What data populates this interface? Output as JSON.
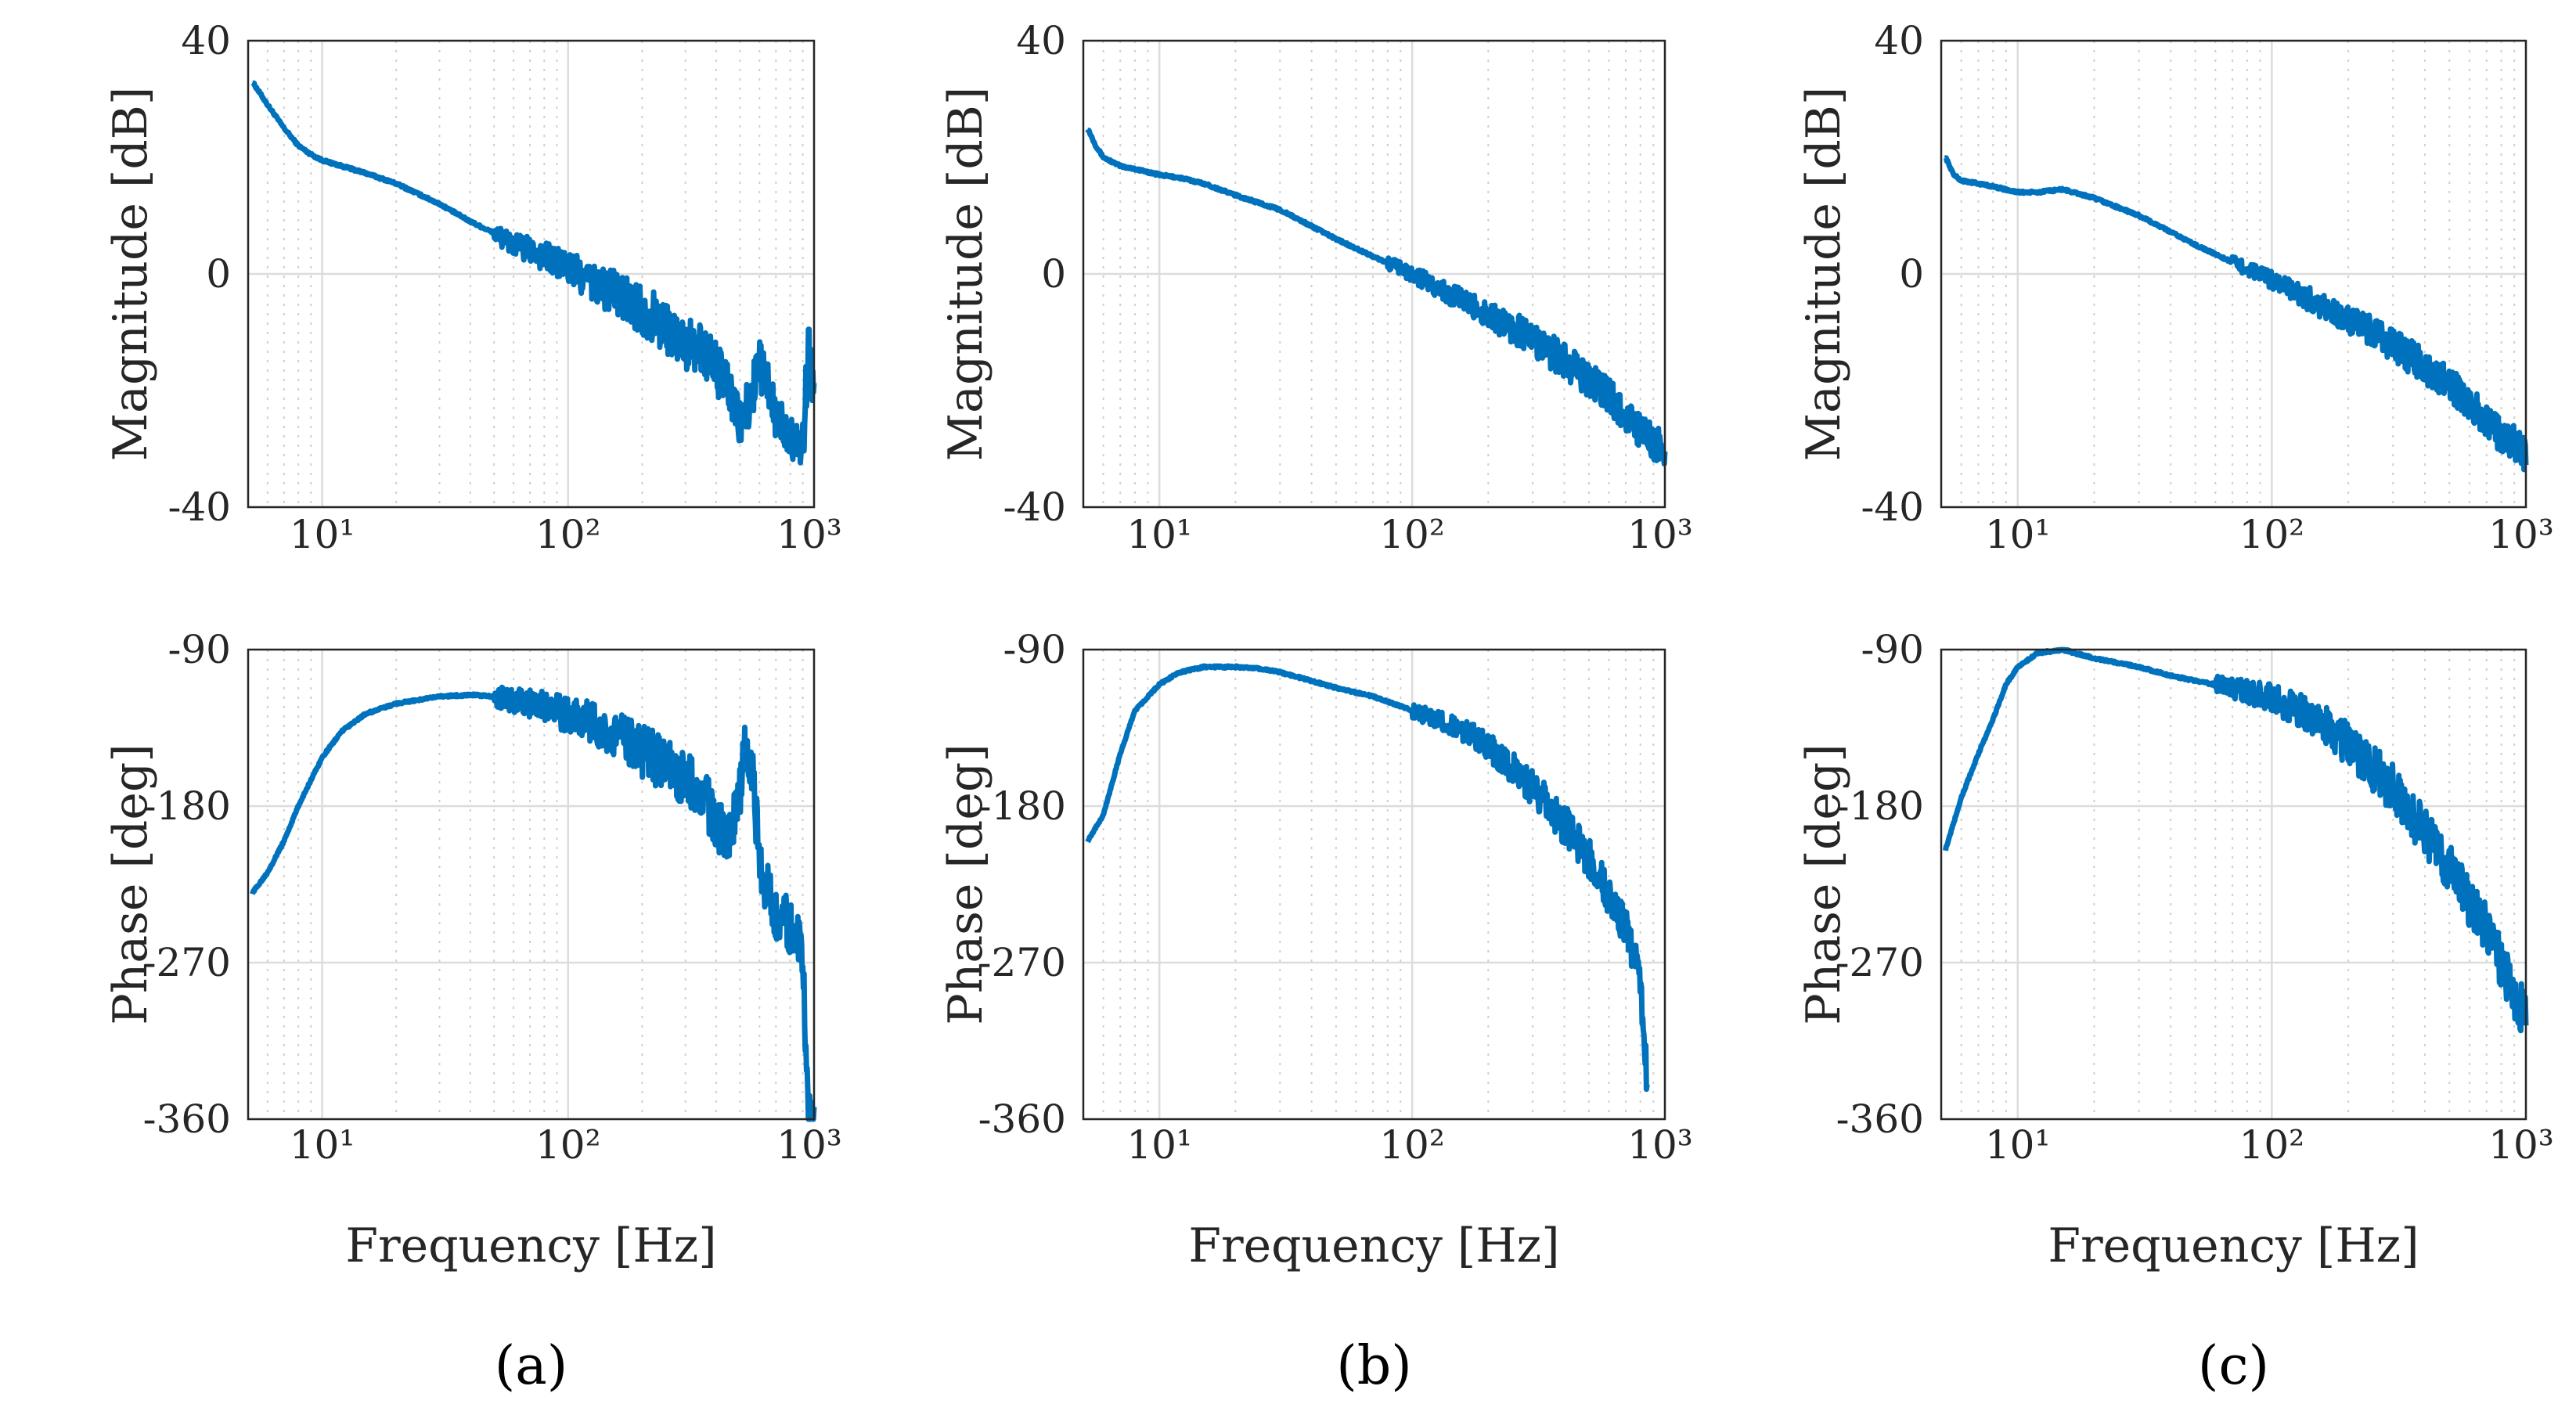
{
  "figure": {
    "series_color": "#0072BD",
    "grid_color": "#dcdcdc",
    "frame_color": "#262626"
  },
  "chart_data": [
    {
      "panel": "(a)",
      "type": "line",
      "x_scale": "log",
      "xlim": [
        5,
        1000
      ],
      "x_ticks": [
        10,
        100,
        1000
      ],
      "x_tick_labels": [
        "10¹",
        "10²",
        "10³"
      ],
      "xlabel": "Frequency [Hz]",
      "magnitude": {
        "ylabel": "Magnitude [dB]",
        "ylim": [
          -40,
          40
        ],
        "y_ticks": [
          40,
          0,
          -40
        ],
        "y_tick_labels": [
          "40",
          "0",
          "-40"
        ],
        "x": [
          5.2,
          6,
          7,
          8,
          9,
          10,
          12,
          15,
          20,
          30,
          40,
          50,
          60,
          70,
          80,
          100,
          120,
          150,
          200,
          250,
          300,
          350,
          400,
          450,
          500,
          550,
          600,
          650,
          700,
          800,
          900,
          950,
          1000
        ],
        "y": [
          33,
          29,
          25,
          22,
          20.5,
          19.5,
          18.5,
          17.3,
          15.5,
          12,
          9,
          7,
          5,
          4,
          3,
          1,
          -1,
          -3,
          -6,
          -9,
          -12,
          -13,
          -16,
          -20,
          -26,
          -22,
          -15,
          -20,
          -25,
          -27,
          -30,
          -12,
          -20
        ],
        "noise_from_hz": 50,
        "noise_amplitude_db": 4.5
      },
      "phase": {
        "ylabel": "Phase [deg]",
        "ylim": [
          -360,
          -90
        ],
        "y_ticks": [
          -90,
          -180,
          -270,
          -360
        ],
        "y_tick_labels": [
          "-90",
          "-180",
          "-270",
          "-360"
        ],
        "x": [
          5.2,
          6,
          7,
          8,
          9,
          10,
          12,
          15,
          20,
          30,
          40,
          50,
          70,
          100,
          130,
          150,
          200,
          250,
          300,
          350,
          400,
          450,
          500,
          530,
          560,
          600,
          650,
          700,
          800,
          900,
          950,
          1000
        ],
        "y": [
          -230,
          -218,
          -200,
          -180,
          -165,
          -152,
          -137,
          -127,
          -121,
          -117,
          -116,
          -117,
          -121,
          -127,
          -133,
          -138,
          -148,
          -158,
          -165,
          -170,
          -190,
          -200,
          -170,
          -140,
          -160,
          -210,
          -230,
          -240,
          -250,
          -265,
          -360,
          -360
        ],
        "noise_from_hz": 50,
        "noise_amplitude_deg": 16
      }
    },
    {
      "panel": "(b)",
      "type": "line",
      "x_scale": "log",
      "xlim": [
        5,
        1000
      ],
      "x_ticks": [
        10,
        100,
        1000
      ],
      "x_tick_labels": [
        "10¹",
        "10²",
        "10³"
      ],
      "xlabel": "Frequency [Hz]",
      "magnitude": {
        "ylabel": "Magnitude [dB]",
        "ylim": [
          -40,
          40
        ],
        "y_ticks": [
          40,
          0,
          -40
        ],
        "y_tick_labels": [
          "40",
          "0",
          "-40"
        ],
        "x": [
          5.2,
          5.6,
          6,
          7,
          8,
          10,
          12,
          15,
          20,
          30,
          50,
          70,
          100,
          150,
          200,
          300,
          400,
          500,
          600,
          700,
          800,
          900,
          1000
        ],
        "y": [
          25,
          22,
          20,
          18.5,
          18,
          17,
          16.5,
          15.5,
          13.5,
          11,
          6,
          3,
          0,
          -4,
          -7,
          -11,
          -15,
          -18,
          -21,
          -24,
          -27,
          -29,
          -30
        ],
        "noise_from_hz": 80,
        "noise_amplitude_db": 3
      },
      "phase": {
        "ylabel": "Phase [deg]",
        "ylim": [
          -360,
          -90
        ],
        "y_ticks": [
          -90,
          -180,
          -270,
          -360
        ],
        "y_tick_labels": [
          "-90",
          "-180",
          "-270",
          "-360"
        ],
        "x": [
          5.2,
          6,
          7,
          8,
          10,
          12,
          15,
          20,
          25,
          30,
          40,
          50,
          70,
          100,
          150,
          200,
          300,
          400,
          500,
          600,
          700,
          800,
          850
        ],
        "y": [
          -200,
          -185,
          -150,
          -125,
          -110,
          -103,
          -100,
          -100,
          -101,
          -103,
          -108,
          -112,
          -117,
          -125,
          -135,
          -145,
          -170,
          -190,
          -210,
          -230,
          -250,
          -280,
          -340
        ],
        "noise_from_hz": 100,
        "noise_amplitude_deg": 12
      }
    },
    {
      "panel": "(c)",
      "type": "line",
      "x_scale": "log",
      "xlim": [
        5,
        1000
      ],
      "x_ticks": [
        10,
        100,
        1000
      ],
      "x_tick_labels": [
        "10¹",
        "10²",
        "10³"
      ],
      "xlabel": "Frequency [Hz]",
      "magnitude": {
        "ylabel": "Magnitude [dB]",
        "ylim": [
          -40,
          40
        ],
        "y_ticks": [
          40,
          0,
          -40
        ],
        "y_tick_labels": [
          "40",
          "0",
          "-40"
        ],
        "x": [
          5.2,
          5.6,
          6,
          7,
          8,
          10,
          12,
          15,
          20,
          30,
          50,
          70,
          100,
          150,
          200,
          300,
          400,
          500,
          600,
          700,
          800,
          900,
          1000
        ],
        "y": [
          20,
          17,
          16,
          15.5,
          15,
          14,
          14,
          14.5,
          13,
          10,
          5,
          2,
          -1,
          -5,
          -8,
          -12,
          -16,
          -19,
          -22,
          -25,
          -28,
          -29,
          -31
        ],
        "noise_from_hz": 70,
        "noise_amplitude_db": 3
      },
      "phase": {
        "ylabel": "Phase [deg]",
        "ylim": [
          -360,
          -90
        ],
        "y_ticks": [
          -90,
          -180,
          -270,
          -360
        ],
        "y_tick_labels": [
          "-90",
          "-180",
          "-270",
          "-360"
        ],
        "x": [
          5.2,
          6,
          7,
          8,
          9,
          10,
          12,
          15,
          20,
          30,
          40,
          50,
          70,
          100,
          150,
          200,
          300,
          400,
          500,
          600,
          700,
          800,
          900,
          1000
        ],
        "y": [
          -205,
          -175,
          -150,
          -130,
          -110,
          -100,
          -92,
          -90,
          -95,
          -100,
          -105,
          -108,
          -112,
          -118,
          -130,
          -145,
          -170,
          -195,
          -215,
          -235,
          -250,
          -270,
          -290,
          -300
        ],
        "noise_from_hz": 60,
        "noise_amplitude_deg": 14
      }
    }
  ]
}
